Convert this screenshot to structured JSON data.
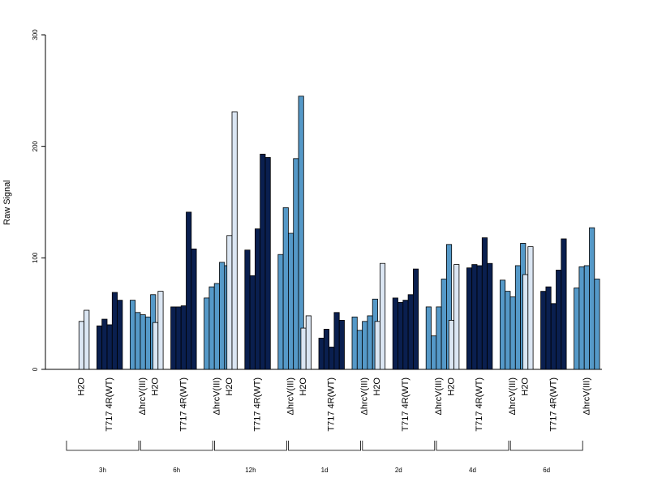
{
  "chart_data": {
    "type": "bar",
    "ylabel": "Raw Signal",
    "ylim": [
      0,
      300
    ],
    "yticks": [
      0,
      100,
      200,
      300
    ],
    "sample_labels": [
      "H2O",
      "T717 4R(WT)",
      "ΔhrcV(III)"
    ],
    "colors": {
      "H2O": "#dbe6f3",
      "WT": "#0a1f4f",
      "mutant": "#5599c8"
    },
    "groups": [
      {
        "time": "3h",
        "H2O": [
          0,
          43,
          53
        ],
        "WT": [
          39,
          45,
          40,
          69,
          62
        ],
        "mutant": [
          62,
          51,
          49,
          47,
          67
        ]
      },
      {
        "time": "6h",
        "H2O": [
          0,
          42,
          70
        ],
        "WT": [
          56,
          56,
          57,
          141,
          108
        ],
        "mutant": [
          64,
          74,
          77,
          96,
          93
        ]
      },
      {
        "time": "12h",
        "H2O": [
          0,
          120,
          231
        ],
        "WT": [
          107,
          84,
          126,
          193,
          190
        ],
        "mutant": [
          103,
          145,
          122,
          189,
          245
        ]
      },
      {
        "time": "1d",
        "H2O": [
          0,
          37,
          48
        ],
        "WT": [
          28,
          36,
          20,
          51,
          44
        ],
        "mutant": [
          47,
          35,
          43,
          48,
          63
        ]
      },
      {
        "time": "2d",
        "H2O": [
          0,
          43,
          95
        ],
        "WT": [
          64,
          60,
          62,
          67,
          90
        ],
        "mutant": [
          56,
          30,
          56,
          81,
          112
        ]
      },
      {
        "time": "4d",
        "H2O": [
          0,
          44,
          94
        ],
        "WT": [
          91,
          94,
          93,
          118,
          95
        ],
        "mutant": [
          80,
          70,
          65,
          93,
          113
        ]
      },
      {
        "time": "6d",
        "H2O": [
          0,
          85,
          110
        ],
        "WT": [
          70,
          74,
          59,
          89,
          117
        ],
        "mutant": [
          73,
          92,
          93,
          127,
          81
        ]
      }
    ]
  }
}
